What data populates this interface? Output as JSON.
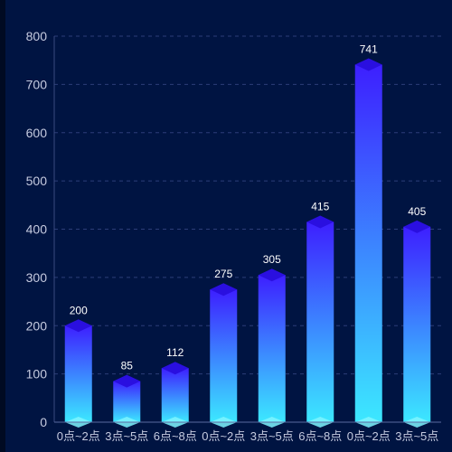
{
  "chart_data": {
    "type": "bar",
    "categories": [
      "0点~2点",
      "3点~5点",
      "6点~8点",
      "0点~2点",
      "3点~5点",
      "6点~8点",
      "0点~2点",
      "3点~5点"
    ],
    "values": [
      200,
      85,
      112,
      275,
      305,
      415,
      741,
      405
    ],
    "ylim": [
      0,
      800
    ],
    "yticks": [
      "0",
      "100",
      "200",
      "300",
      "400",
      "500",
      "600",
      "700",
      "800"
    ],
    "grid": true,
    "grid_style": "dashed",
    "colors": {
      "background": "#001442",
      "bar_top": "#3d1fff",
      "bar_bottom": "#3ce8ff",
      "cap": "#2a0fe0",
      "label": "#ffffff",
      "axis_text": "#c6cbe0",
      "grid": "#2c3d78"
    }
  }
}
